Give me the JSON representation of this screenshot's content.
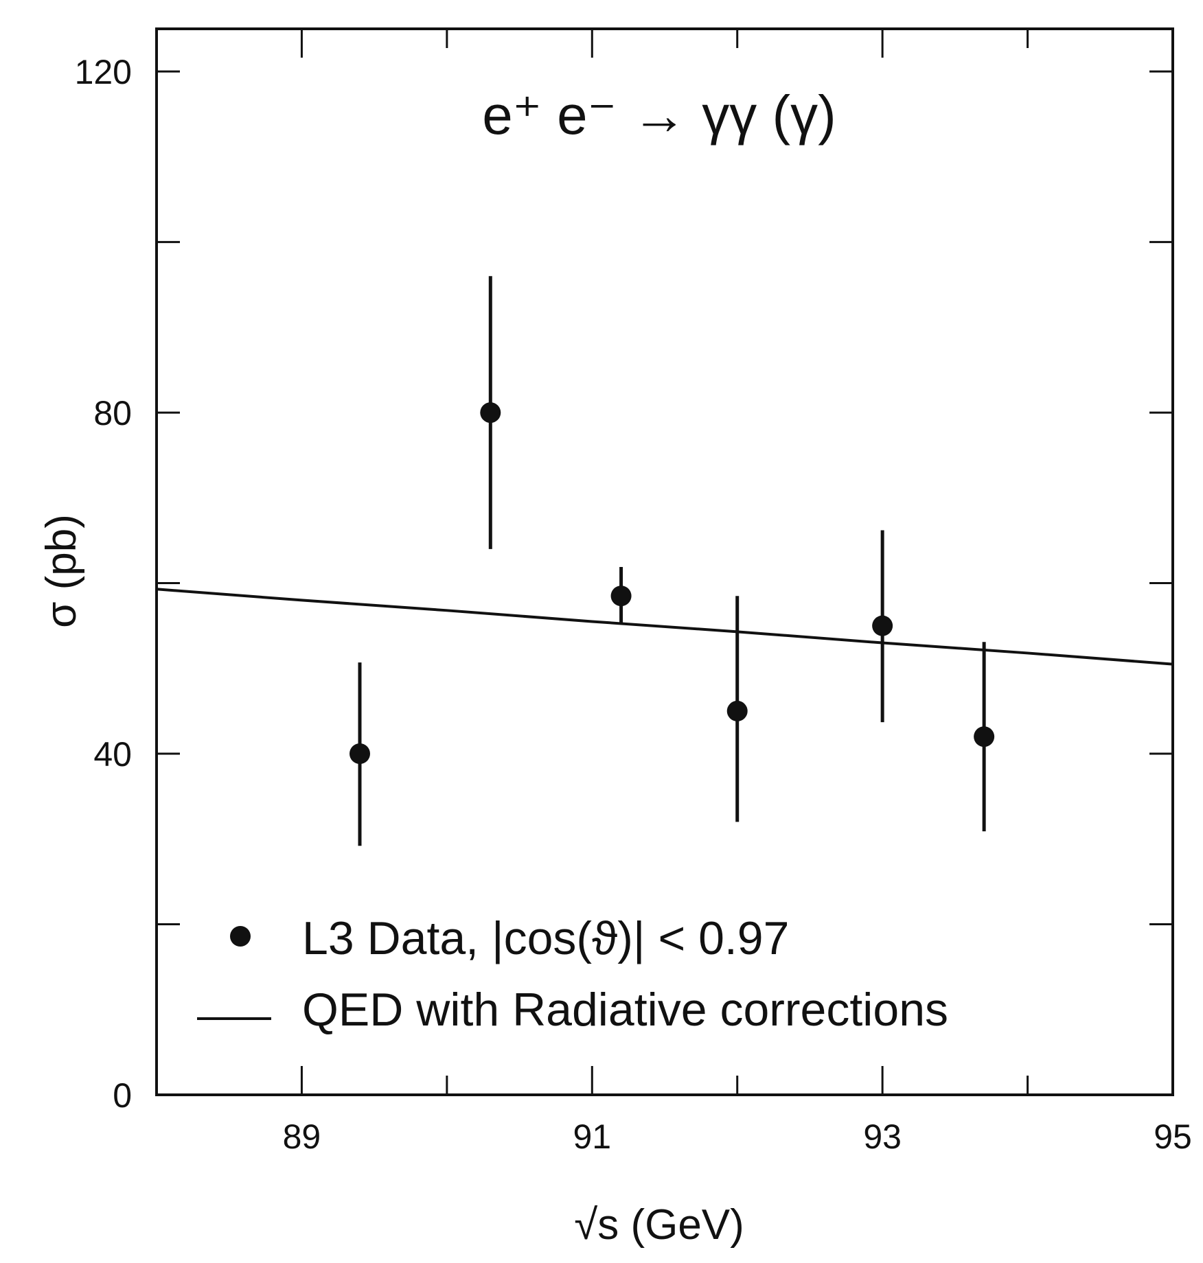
{
  "chart_data": {
    "type": "scatter",
    "title": "e⁺ e⁻ → γγ (γ)",
    "xlabel": "√s (GeV)",
    "ylabel": "σ (pb)",
    "xlim": [
      88,
      95
    ],
    "ylim": [
      0,
      125
    ],
    "x_ticks": [
      "89",
      "91",
      "93",
      "95"
    ],
    "y_ticks": [
      "0",
      "40",
      "80",
      "120"
    ],
    "grid": false,
    "legend_position": "bottom-left",
    "series": [
      {
        "name": "L3 Data, |cos(ϑ)| < 0.97",
        "kind": "points_with_errors",
        "color": "#111111",
        "points": [
          {
            "x": 89.4,
            "y": 40,
            "err_low": 10.8,
            "err_high": 10.7
          },
          {
            "x": 90.3,
            "y": 80,
            "err_low": 16,
            "err_high": 16
          },
          {
            "x": 91.2,
            "y": 58.5,
            "err_low": 3.3,
            "err_high": 3.4
          },
          {
            "x": 92.0,
            "y": 45,
            "err_low": 13,
            "err_high": 13.5
          },
          {
            "x": 93.0,
            "y": 55,
            "err_low": 11.3,
            "err_high": 11.2
          },
          {
            "x": 93.7,
            "y": 42,
            "err_low": 11.1,
            "err_high": 11.1
          }
        ]
      },
      {
        "name": "QED with Radiative corrections",
        "kind": "line",
        "color": "#111111",
        "x": [
          88,
          89,
          90,
          91,
          92,
          93,
          94,
          95
        ],
        "y": [
          59.3,
          58.0,
          56.8,
          55.5,
          54.3,
          53.0,
          51.8,
          50.5
        ]
      }
    ]
  }
}
